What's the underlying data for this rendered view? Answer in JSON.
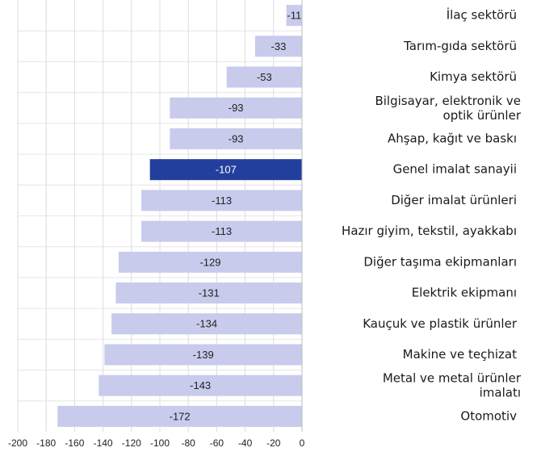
{
  "chart_data": {
    "type": "bar",
    "orientation": "horizontal",
    "categories": [
      "İlaç sektörü",
      "Tarım-gıda sektörü",
      "Kimya sektörü",
      "Bilgisayar, elektronik ve\noptik ürünler",
      "Ahşap, kağıt ve baskı",
      "Genel imalat sanayii",
      "Diğer imalat ürünleri",
      "Hazır giyim, tekstil, ayakkabı",
      "Diğer taşıma ekipmanları",
      "Elektrik ekipmanı",
      "Kauçuk ve plastik ürünler",
      "Makine ve teçhizat",
      "Metal ve metal ürünler\nimalatı",
      "Otomotiv"
    ],
    "values": [
      -11,
      -33,
      -53,
      -93,
      -93,
      -107,
      -113,
      -113,
      -129,
      -131,
      -134,
      -139,
      -143,
      -172
    ],
    "colors": [
      "#c8cbec",
      "#c8cbec",
      "#c8cbec",
      "#c8cbec",
      "#c8cbec",
      "#233f9e",
      "#c8cbec",
      "#c8cbec",
      "#c8cbec",
      "#c8cbec",
      "#c8cbec",
      "#c8cbec",
      "#c8cbec",
      "#c8cbec"
    ],
    "xlim": [
      -200,
      0
    ],
    "xticks": [
      -200,
      -180,
      -160,
      -140,
      -120,
      -100,
      -80,
      -60,
      -40,
      -20,
      0
    ],
    "grid": true
  }
}
